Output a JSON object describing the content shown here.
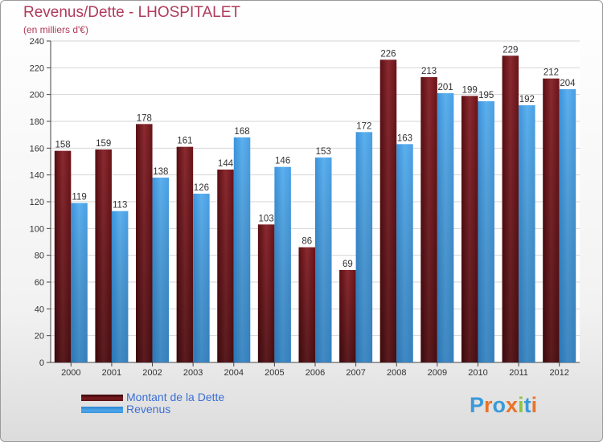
{
  "chart_data": {
    "type": "bar",
    "title": "Revenus/Dette - LHOSPITALET",
    "subtitle": "(en milliers d'€)",
    "xlabel": "",
    "ylabel": "",
    "categories": [
      "2000",
      "2001",
      "2002",
      "2003",
      "2004",
      "2005",
      "2006",
      "2007",
      "2008",
      "2009",
      "2010",
      "2011",
      "2012"
    ],
    "series": [
      {
        "name": "Montant de la Dette",
        "color": "#7a1c22",
        "values": [
          158,
          159,
          178,
          161,
          144,
          103,
          86,
          69,
          226,
          213,
          199,
          229,
          212
        ]
      },
      {
        "name": "Revenus",
        "color": "#4da6e8",
        "values": [
          119,
          113,
          138,
          126,
          168,
          146,
          153,
          172,
          163,
          201,
          195,
          192,
          204
        ]
      }
    ],
    "ylim": [
      0,
      240
    ],
    "yticks": [
      0,
      20,
      40,
      60,
      80,
      100,
      120,
      140,
      160,
      180,
      200,
      220,
      240
    ],
    "grid": true,
    "legend_position": "bottom-left"
  },
  "legend": {
    "debt_label": "Montant de la Dette",
    "revenue_label": "Revenus"
  },
  "brand": {
    "logo_text": "Proxiti"
  }
}
